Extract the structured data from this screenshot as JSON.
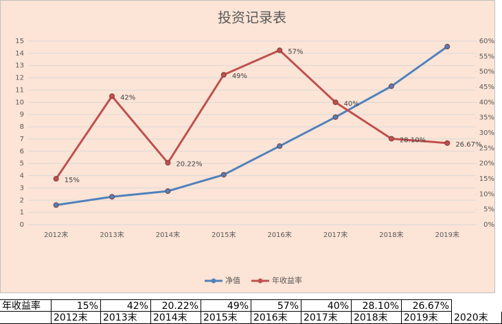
{
  "chart_data": {
    "type": "line",
    "title": "投资记录表",
    "categories": [
      "2012末",
      "2013末",
      "2014末",
      "2015末",
      "2016末",
      "2017末",
      "2018末",
      "2019末"
    ],
    "series": [
      {
        "name": "净值",
        "color": "#4f81bd",
        "values": [
          1.6,
          2.28,
          2.74,
          4.08,
          6.42,
          8.79,
          11.31,
          14.55
        ]
      },
      {
        "name": "年收益率",
        "color": "#c0504d",
        "axis": "y2",
        "values": [
          15,
          42,
          20.22,
          49,
          57,
          40,
          28.1,
          26.67
        ],
        "value_labels": [
          "15%",
          "42%",
          "20.22%",
          "49%",
          "57%",
          "40%",
          "28.10%",
          "26.67%"
        ]
      }
    ],
    "ylim": [
      0,
      15
    ],
    "yticks": [
      0,
      1,
      2,
      3,
      4,
      5,
      6,
      7,
      8,
      9,
      10,
      11,
      12,
      13,
      14,
      15
    ],
    "y2lim": [
      0,
      60
    ],
    "y2ticks": [
      {
        "value": 0,
        "label": "0%"
      },
      {
        "value": 5,
        "label": "5%"
      },
      {
        "value": 10,
        "label": "10%"
      },
      {
        "value": 15,
        "label": "15%"
      },
      {
        "value": 20,
        "label": "20%"
      },
      {
        "value": 25,
        "label": "25%"
      },
      {
        "value": 30,
        "label": "30%"
      },
      {
        "value": 35,
        "label": "35%"
      },
      {
        "value": 40,
        "label": "40%"
      },
      {
        "value": 45,
        "label": "45%"
      },
      {
        "value": 50,
        "label": "50%"
      },
      {
        "value": 55,
        "label": "55%"
      },
      {
        "value": 60,
        "label": "60%"
      }
    ],
    "grid": true,
    "legend": "bottom",
    "background": "#fce4d6"
  },
  "table": {
    "rows": [
      [
        "年收益率",
        "15%",
        "42%",
        "20.22%",
        "49%",
        "57%",
        "40%",
        "28.10%",
        "26.67%"
      ],
      [
        "",
        "2012末",
        "2013末",
        "2014末",
        "2015末",
        "2016末",
        "2017末",
        "2018末",
        "2019末",
        "2020末"
      ]
    ]
  }
}
